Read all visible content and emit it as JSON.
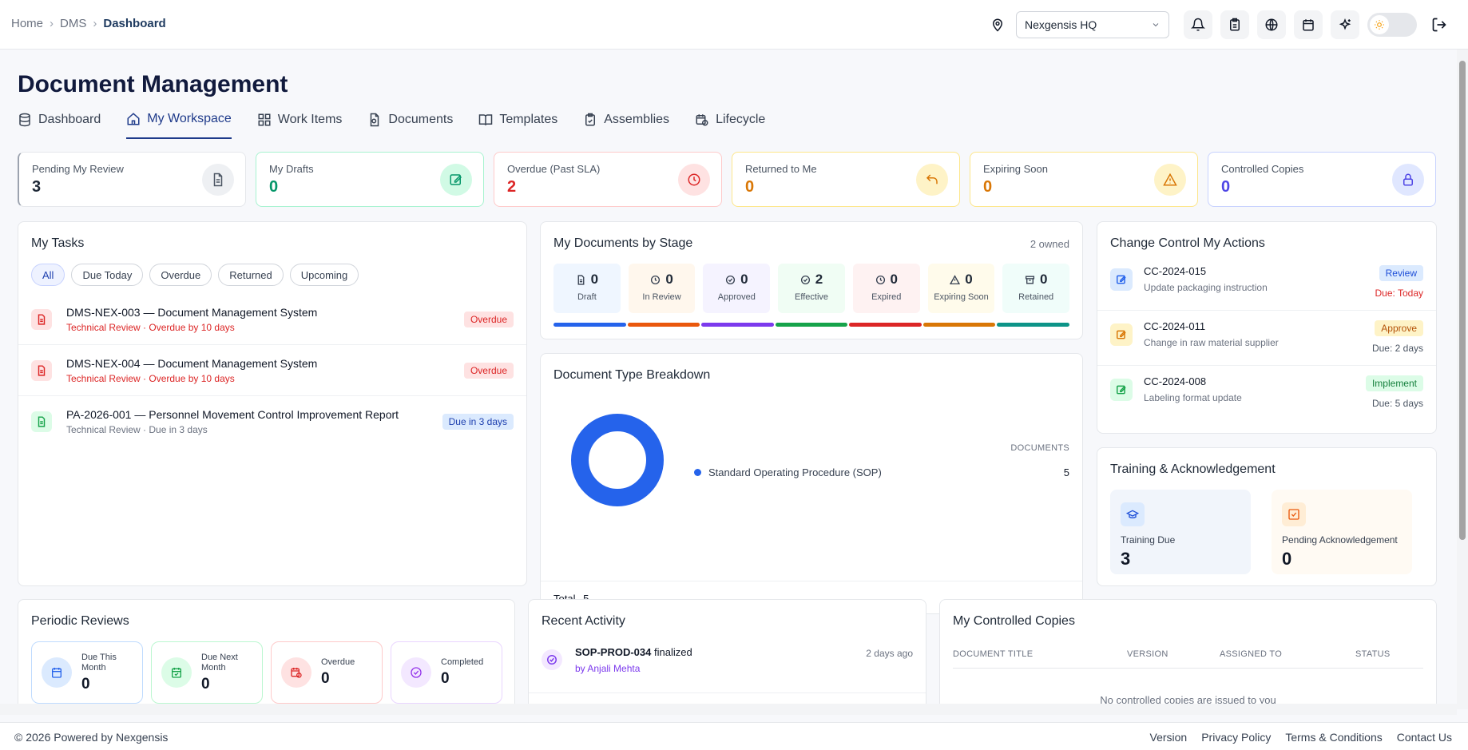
{
  "breadcrumb": [
    "Home",
    "DMS",
    "Dashboard"
  ],
  "location": "Nexgensis HQ",
  "page_title": "Document Management",
  "tabs": [
    {
      "label": "Dashboard",
      "icon": "database-icon"
    },
    {
      "label": "My Workspace",
      "icon": "home-icon",
      "active": true
    },
    {
      "label": "Work Items",
      "icon": "grid-icon"
    },
    {
      "label": "Documents",
      "icon": "file-search-icon"
    },
    {
      "label": "Templates",
      "icon": "book-icon"
    },
    {
      "label": "Assemblies",
      "icon": "clipboard-check-icon"
    },
    {
      "label": "Lifecycle",
      "icon": "calendar-clock-icon"
    }
  ],
  "stats": [
    {
      "label": "Pending My Review",
      "value": "3",
      "color": "#1f2937"
    },
    {
      "label": "My Drafts",
      "value": "0",
      "color": "#059669"
    },
    {
      "label": "Overdue (Past SLA)",
      "value": "2",
      "color": "#dc2626"
    },
    {
      "label": "Returned to Me",
      "value": "0",
      "color": "#d97706"
    },
    {
      "label": "Expiring Soon",
      "value": "0",
      "color": "#d97706"
    },
    {
      "label": "Controlled Copies",
      "value": "0",
      "color": "#4f46e5"
    }
  ],
  "my_tasks": {
    "title": "My Tasks",
    "filters": [
      "All",
      "Due Today",
      "Overdue",
      "Returned",
      "Upcoming"
    ],
    "items": [
      {
        "title": "DMS-NEX-003 — Document Management System",
        "sub": "Technical Review · Overdue by 10 days",
        "badge": "Overdue"
      },
      {
        "title": "DMS-NEX-004 — Document Management System",
        "sub": "Technical Review · Overdue by 10 days",
        "badge": "Overdue"
      },
      {
        "title": "PA-2026-001 — Personnel Movement Control Improvement Report",
        "sub": "Technical Review · Due in 3 days",
        "badge": "Due in 3 days"
      }
    ]
  },
  "stages": {
    "title": "My Documents by Stage",
    "owned": "2 owned",
    "items": [
      {
        "label": "Draft",
        "value": "0",
        "color": "#2563eb"
      },
      {
        "label": "In Review",
        "value": "0",
        "color": "#ea580c"
      },
      {
        "label": "Approved",
        "value": "0",
        "color": "#7c3aed"
      },
      {
        "label": "Effective",
        "value": "2",
        "color": "#16a34a"
      },
      {
        "label": "Expired",
        "value": "0",
        "color": "#dc2626"
      },
      {
        "label": "Expiring Soon",
        "value": "0",
        "color": "#d97706"
      },
      {
        "label": "Retained",
        "value": "0",
        "color": "#0d9488"
      }
    ]
  },
  "type_breakdown": {
    "title": "Document Type Breakdown",
    "col_header": "DOCUMENTS",
    "total_label": "Total",
    "total": "5",
    "chart_data": {
      "type": "pie",
      "categories": [
        "Standard Operating Procedure (SOP)"
      ],
      "values": [
        5
      ],
      "colors": [
        "#2563eb"
      ]
    }
  },
  "change_control": {
    "title": "Change Control My Actions",
    "items": [
      {
        "id": "CC-2024-015",
        "desc": "Update packaging instruction",
        "action": "Review",
        "due": "Due: Today"
      },
      {
        "id": "CC-2024-011",
        "desc": "Change in raw material supplier",
        "action": "Approve",
        "due": "Due: 2 days"
      },
      {
        "id": "CC-2024-008",
        "desc": "Labeling format update",
        "action": "Implement",
        "due": "Due: 5 days"
      }
    ]
  },
  "training": {
    "title": "Training & Acknowledgement",
    "due_label": "Training Due",
    "due_value": "3",
    "ack_label": "Pending Acknowledgement",
    "ack_value": "0"
  },
  "periodic": {
    "title": "Periodic Reviews",
    "items": [
      {
        "label": "Due This Month",
        "value": "0"
      },
      {
        "label": "Due Next Month",
        "value": "0"
      },
      {
        "label": "Overdue",
        "value": "0"
      },
      {
        "label": "Completed",
        "value": "0"
      }
    ]
  },
  "activity": {
    "title": "Recent Activity",
    "items": [
      {
        "doc": "SOP-PROD-034",
        "action": "finalized",
        "by": "by Anjali Mehta",
        "time": "2 days ago"
      }
    ]
  },
  "copies": {
    "title": "My Controlled Copies",
    "columns": [
      "DOCUMENT TITLE",
      "VERSION",
      "ASSIGNED TO",
      "STATUS"
    ],
    "empty": "No controlled copies are issued to you"
  },
  "footer": {
    "copyright": "© 2026 Powered by Nexgensis",
    "links": [
      "Version",
      "Privacy Policy",
      "Terms & Conditions",
      "Contact Us"
    ]
  }
}
